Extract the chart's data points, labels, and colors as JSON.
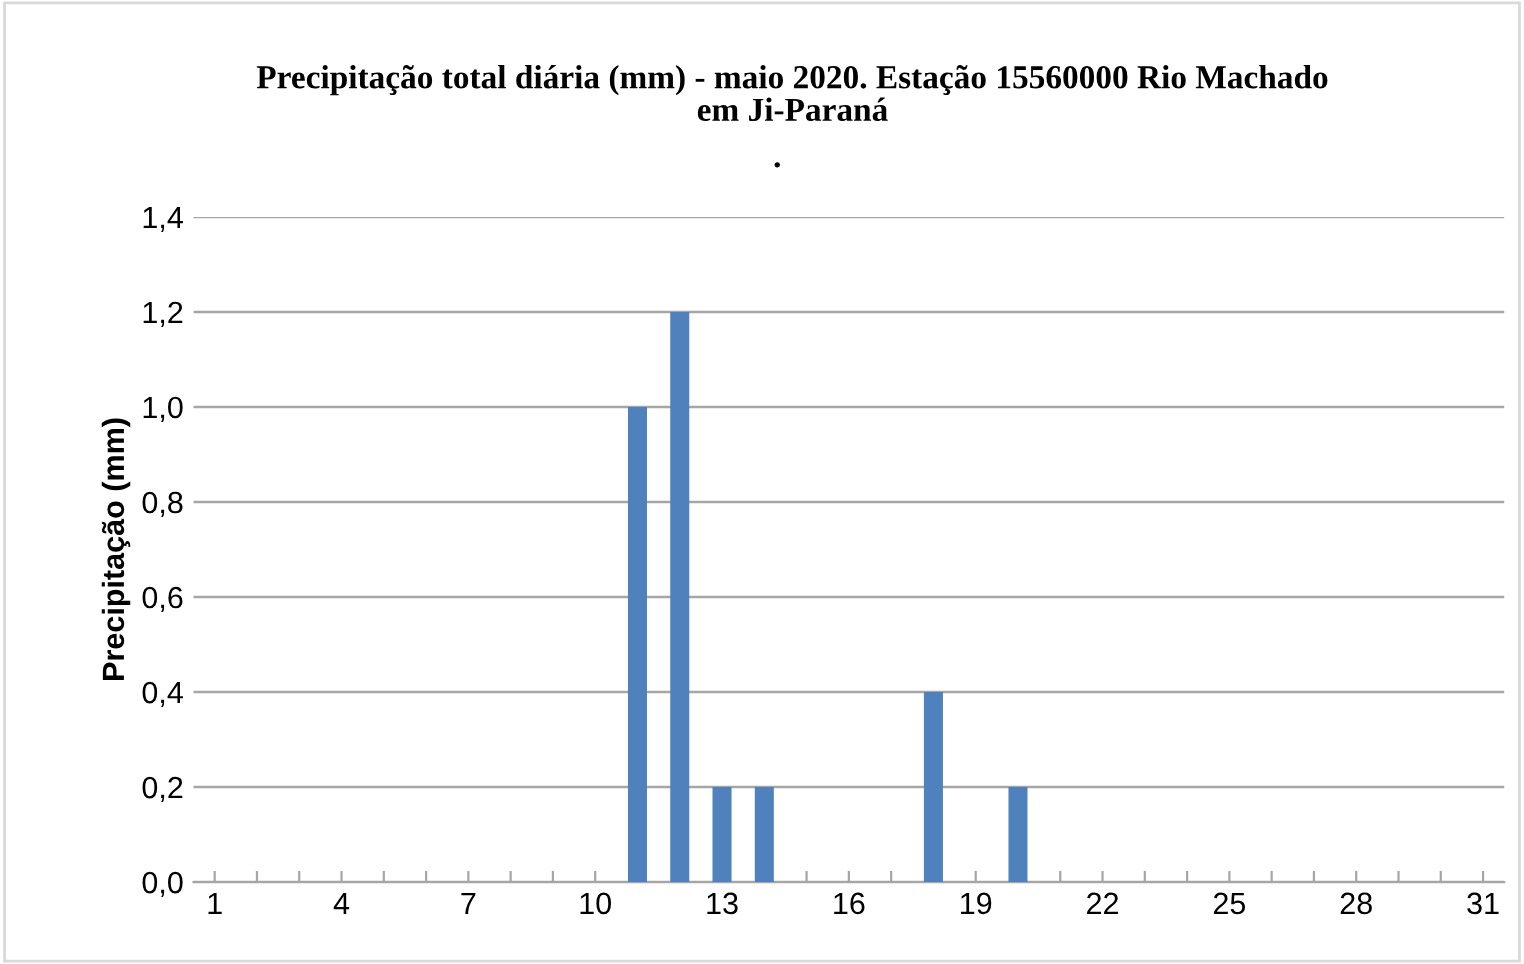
{
  "chart_data": {
    "type": "bar",
    "title": "Precipitação total diária (mm) - maio 2020. Estação 15560000 Rio Machado\nem Ji-Paraná",
    "subtitle": ".",
    "ylabel": "Precipitação (mm)",
    "categories": [
      "1",
      null,
      null,
      "4",
      null,
      null,
      "7",
      null,
      null,
      "10",
      null,
      null,
      "13",
      null,
      null,
      "16",
      null,
      null,
      "19",
      null,
      null,
      "22",
      null,
      null,
      "25",
      null,
      null,
      "28",
      null,
      null,
      "31"
    ],
    "values": [
      0,
      0,
      0,
      0,
      0,
      0,
      0,
      0,
      0,
      0,
      1.0,
      1.2,
      0.2,
      0.2,
      0,
      0,
      0,
      0.4,
      0,
      0.2,
      0,
      0,
      0,
      0,
      0,
      0,
      0,
      0,
      0,
      0,
      0
    ],
    "color": "#4f81bd",
    "ylim": [
      0,
      1.4
    ],
    "yticks": [
      {
        "value": 0,
        "label": "0,0"
      },
      {
        "value": 0.2,
        "label": "0,2"
      },
      {
        "value": 0.4,
        "label": "0,4"
      },
      {
        "value": 0.6,
        "label": "0,6"
      },
      {
        "value": 0.8,
        "label": "0,8"
      },
      {
        "value": 1.0,
        "label": "1,0"
      },
      {
        "value": 1.2,
        "label": "1,2"
      },
      {
        "value": 1.4,
        "label": "1,4"
      }
    ],
    "grid": "y",
    "legend": false
  }
}
